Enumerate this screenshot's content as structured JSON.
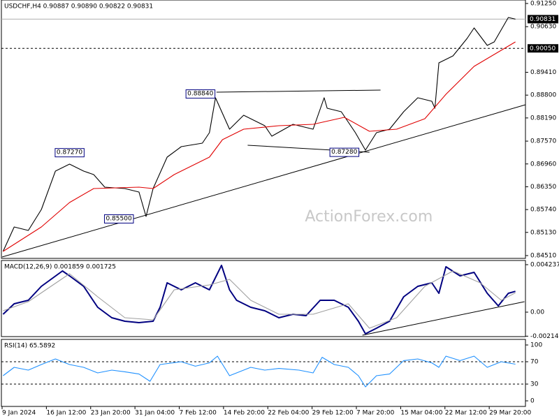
{
  "chart_data": [
    {
      "type": "line",
      "title": "USDCHF,H4  0.90887 0.90890 0.90822 0.90831",
      "watermark": "ActionForex.com",
      "xlim": [
        0,
        520
      ],
      "ylim": [
        0.84435,
        0.91343
      ],
      "yticks": [
        {
          "value": 0.9125,
          "label": "0.91250"
        },
        {
          "value": 0.9063,
          "label": "0.90630"
        },
        {
          "value": 0.8941,
          "label": "0.89410"
        },
        {
          "value": 0.888,
          "label": "0.88800"
        },
        {
          "value": 0.8819,
          "label": "0.88190"
        },
        {
          "value": 0.8757,
          "label": "0.87570"
        },
        {
          "value": 0.8696,
          "label": "0.86960"
        },
        {
          "value": 0.8635,
          "label": "0.86350"
        },
        {
          "value": 0.8574,
          "label": "0.85740"
        },
        {
          "value": 0.8513,
          "label": "0.85130"
        },
        {
          "value": 0.8451,
          "label": "0.84510"
        }
      ],
      "series": [
        {
          "color": "#000000",
          "x": [
            1,
            12,
            26,
            39,
            53,
            67,
            81,
            91,
            102,
            122,
            136,
            143,
            150,
            164,
            178,
            199,
            206,
            212,
            226,
            240,
            261,
            268,
            289,
            309,
            320,
            323,
            337,
            351,
            361,
            372,
            385,
            399,
            413,
            427,
            430,
            434,
            448,
            462,
            469,
            482,
            489,
            503,
            510
          ],
          "values": [
            0.84622,
            0.85275,
            0.85182,
            0.85742,
            0.86769,
            0.86956,
            0.86769,
            0.86676,
            0.8634,
            0.86302,
            0.86209,
            0.85556,
            0.86302,
            0.87142,
            0.87423,
            0.87516,
            0.87796,
            0.88729,
            0.87889,
            0.88263,
            0.87983,
            0.87703,
            0.8802,
            0.87889,
            0.88729,
            0.88449,
            0.88356,
            0.87796,
            0.87329,
            0.87796,
            0.87889,
            0.88356,
            0.88729,
            0.88636,
            0.88449,
            0.89663,
            0.8985,
            0.90316,
            0.90596,
            0.9013,
            0.90223,
            0.90876,
            0.90831
          ]
        },
        {
          "color": "#e00000",
          "x": [
            1,
            39,
            67,
            91,
            136,
            150,
            171,
            206,
            219,
            240,
            275,
            309,
            340,
            365,
            392,
            420,
            441,
            469,
            510
          ],
          "values": [
            0.84622,
            0.85275,
            0.85929,
            0.86302,
            0.8634,
            0.86302,
            0.86676,
            0.87142,
            0.87609,
            0.87889,
            0.87983,
            0.8802,
            0.88207,
            0.87833,
            0.87889,
            0.88169,
            0.88823,
            0.8957,
            0.90223
          ]
        }
      ],
      "levels": [
        {
          "value": 0.90831,
          "label": "0.90831",
          "style": "solid"
        },
        {
          "value": 0.9005,
          "label": "0.90050",
          "style": "dashed"
        }
      ],
      "trendlines": [
        {
          "x": [
            0,
            520
          ],
          "values": [
            0.84473,
            0.88543
          ]
        },
        {
          "x": [
            213,
            376
          ],
          "values": [
            0.88879,
            0.88935
          ]
        },
        {
          "x": [
            244,
            365
          ],
          "values": [
            0.8746,
            0.87273
          ]
        }
      ],
      "annotations": [
        {
          "label": "0.88840",
          "x": 197,
          "y": 0.8884
        },
        {
          "label": "0.87270",
          "x": 67,
          "y": 0.8727
        },
        {
          "label": "0.85500",
          "x": 116,
          "y": 0.855
        },
        {
          "label": "0.87280",
          "x": 340,
          "y": 0.8728
        }
      ]
    },
    {
      "type": "line",
      "title": "MACD(12,26,9) 0.001859 0.001725",
      "xlim": [
        0,
        520
      ],
      "ylim": [
        -0.00218,
        0.00461
      ],
      "yticks": [
        0.004237,
        {
          "value": 0,
          "label": "0.00"
        },
        -0.002142
      ],
      "series": [
        {
          "color": "#000080",
          "x": [
            1,
            12,
            26,
            39,
            60,
            67,
            81,
            95,
            109,
            122,
            136,
            150,
            157,
            164,
            178,
            192,
            206,
            218,
            226,
            233,
            247,
            261,
            275,
            289,
            302,
            316,
            330,
            344,
            354,
            361,
            372,
            385,
            399,
            413,
            427,
            434,
            441,
            455,
            469,
            482,
            493,
            503,
            510
          ],
          "values": [
            -0.000187,
            0.000748,
            0.001059,
            0.002305,
            0.003676,
            0.00324,
            0.002305,
            0.000436,
            -0.000498,
            -0.00081,
            -0.000935,
            -0.00081,
            0.000436,
            0.002617,
            0.001994,
            0.002617,
            0.001994,
            0.004174,
            0.001994,
            0.001059,
            0.000436,
            0.000125,
            -0.000498,
            -0.000187,
            -0.000312,
            0.001059,
            0.001059,
            0.000436,
            -0.00081,
            -0.001931,
            -0.001433,
            -0.00081,
            0.001371,
            0.002305,
            0.002617,
            0.001682,
            0.00405,
            0.00324,
            0.003551,
            0.001682,
            0.000561,
            0.001682,
            0.001859
          ]
        },
        {
          "color": "#a0a0a0",
          "x": [
            1,
            26,
            67,
            95,
            122,
            150,
            171,
            206,
            226,
            247,
            275,
            309,
            344,
            365,
            392,
            420,
            448,
            475,
            496,
            510
          ],
          "values": [
            0.000125,
            0.000935,
            0.003427,
            0.001371,
            -0.000498,
            -0.000685,
            0.001994,
            0.00243,
            0.002928,
            0.001059,
            -0.000187,
            -0.000187,
            0.000748,
            -0.001433,
            -0.000498,
            0.002305,
            0.003676,
            0.002617,
            0.001059,
            0.001725
          ]
        }
      ],
      "trendlines": [
        {
          "x": [
            358,
            519
          ],
          "values": [
            -0.002056,
            0.000935
          ]
        }
      ]
    },
    {
      "type": "line",
      "title": "RSI(14) 65.5892",
      "xlim": [
        0,
        520
      ],
      "ylim": [
        -10,
        110
      ],
      "yticks": [
        100,
        70,
        30,
        0
      ],
      "levels": [
        {
          "value": 70,
          "style": "dashed"
        },
        {
          "value": 30,
          "style": "dashed"
        }
      ],
      "xticks": [
        {
          "value": 0,
          "label": "9 Jan 2024"
        },
        {
          "value": 44,
          "label": "16 Jan 12:00"
        },
        {
          "value": 88,
          "label": "23 Jan 20:00"
        },
        {
          "value": 132,
          "label": "31 Jan 04:00"
        },
        {
          "value": 176,
          "label": "7 Feb 12:00"
        },
        {
          "value": 220,
          "label": "14 Feb 20:00"
        },
        {
          "value": 264,
          "label": "22 Feb 04:00"
        },
        {
          "value": 308,
          "label": "29 Feb 12:00"
        },
        {
          "value": 352,
          "label": "7 Mar 20:00"
        },
        {
          "value": 396,
          "label": "15 Mar 04:00"
        },
        {
          "value": 440,
          "label": "22 Mar 12:00"
        },
        {
          "value": 484,
          "label": "29 Mar 20:00"
        }
      ],
      "series": [
        {
          "color": "#1e90ff",
          "x": [
            1,
            12,
            26,
            39,
            53,
            67,
            81,
            95,
            109,
            122,
            136,
            147,
            157,
            178,
            192,
            206,
            214,
            226,
            247,
            261,
            275,
            295,
            309,
            318,
            330,
            344,
            354,
            361,
            372,
            385,
            399,
            413,
            427,
            434,
            441,
            455,
            469,
            482,
            496,
            510
          ],
          "values": [
            45,
            60,
            55,
            65,
            75,
            65,
            60,
            50,
            55,
            52,
            48,
            35,
            65,
            70,
            62,
            68,
            80,
            45,
            60,
            55,
            58,
            55,
            50,
            78,
            65,
            60,
            45,
            25,
            45,
            48,
            72,
            75,
            68,
            60,
            80,
            72,
            80,
            60,
            70,
            65.5892
          ]
        }
      ]
    }
  ]
}
